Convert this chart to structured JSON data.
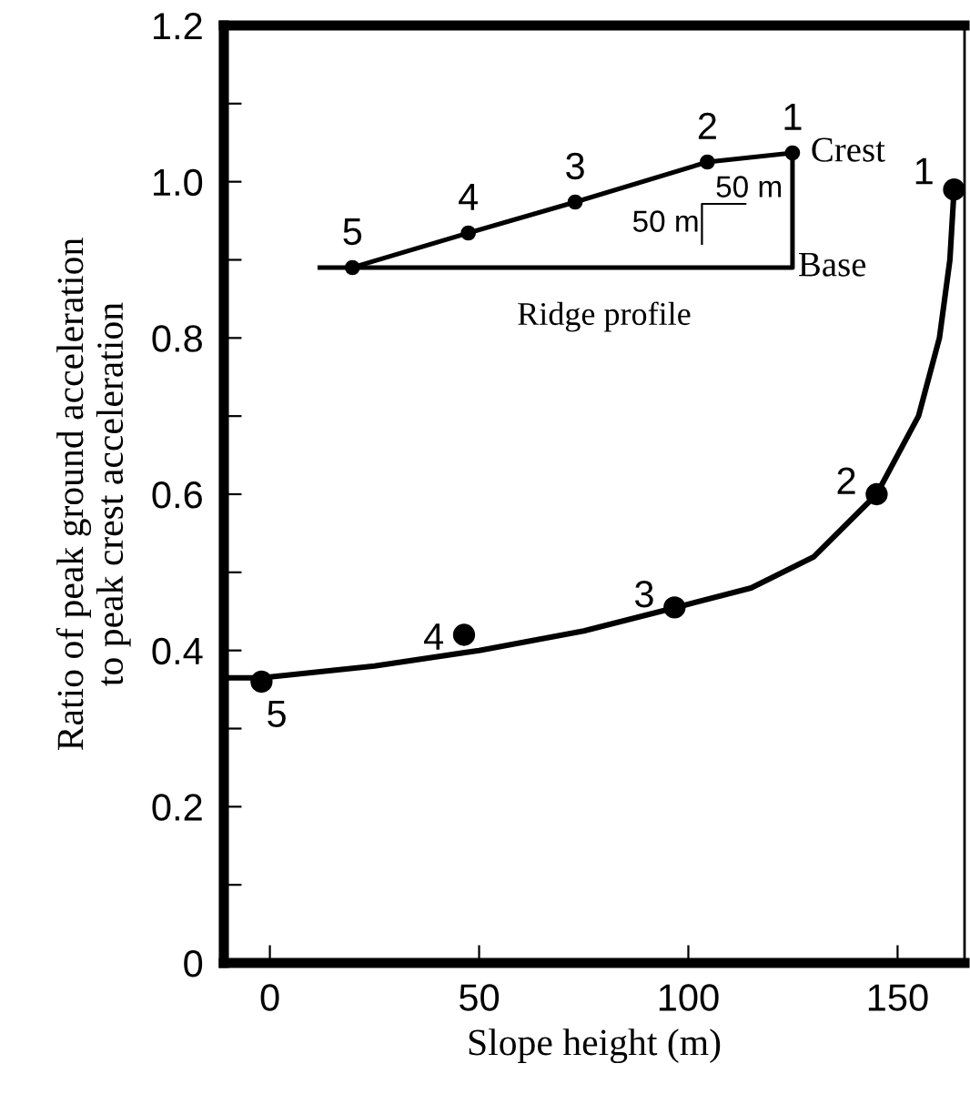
{
  "chart_data": {
    "type": "scatter",
    "xlabel": "Slope height (m)",
    "ylabel": "Ratio of peak ground acceleration\nto peak crest acceleration",
    "series": [
      {
        "type": "line",
        "color": "#000000",
        "line_style": "solid",
        "marker": "none",
        "x": [
          -11,
          -2,
          25,
          50,
          75,
          97,
          115,
          130,
          145,
          155,
          160,
          162.5,
          163.5
        ],
        "values": [
          0.365,
          0.365,
          0.38,
          0.4,
          0.425,
          0.455,
          0.48,
          0.52,
          0.6,
          0.7,
          0.8,
          0.9,
          0.99
        ]
      },
      {
        "color": "#000000",
        "marker": "circle",
        "x": [
          163.5,
          145,
          96.7,
          46.4,
          -2
        ],
        "values": [
          0.99,
          0.6,
          0.455,
          0.42,
          0.36
        ]
      }
    ],
    "xlim": [
      -11,
      166
    ],
    "ylim": [
      0,
      1.2
    ],
    "xticks": [
      0,
      50,
      100,
      150
    ],
    "yticks": [
      0,
      {
        "value": 0.1,
        "label": null
      },
      0.2,
      {
        "value": 0.3,
        "label": null
      },
      0.4,
      {
        "value": 0.5,
        "label": null
      },
      0.6,
      {
        "value": 0.7,
        "label": null
      },
      0.8,
      {
        "value": 0.9,
        "label": null
      },
      "1.0",
      {
        "value": 1.1,
        "label": null
      },
      1.2
    ],
    "grid": false,
    "legend": false,
    "annotations": [
      {
        "text": "1",
        "x": 163.5,
        "y": 0.99
      },
      {
        "text": "2",
        "x": 145,
        "y": 0.6
      },
      {
        "text": "3",
        "x": 96.7,
        "y": 0.455
      },
      {
        "text": "4",
        "x": 46.4,
        "y": 0.42
      },
      {
        "text": "5",
        "x": -2,
        "y": 0.36
      },
      "Ridge profile",
      "Crest",
      "Base",
      "50 m",
      "50 m",
      "1",
      "2",
      "3",
      "4",
      "5"
    ]
  }
}
